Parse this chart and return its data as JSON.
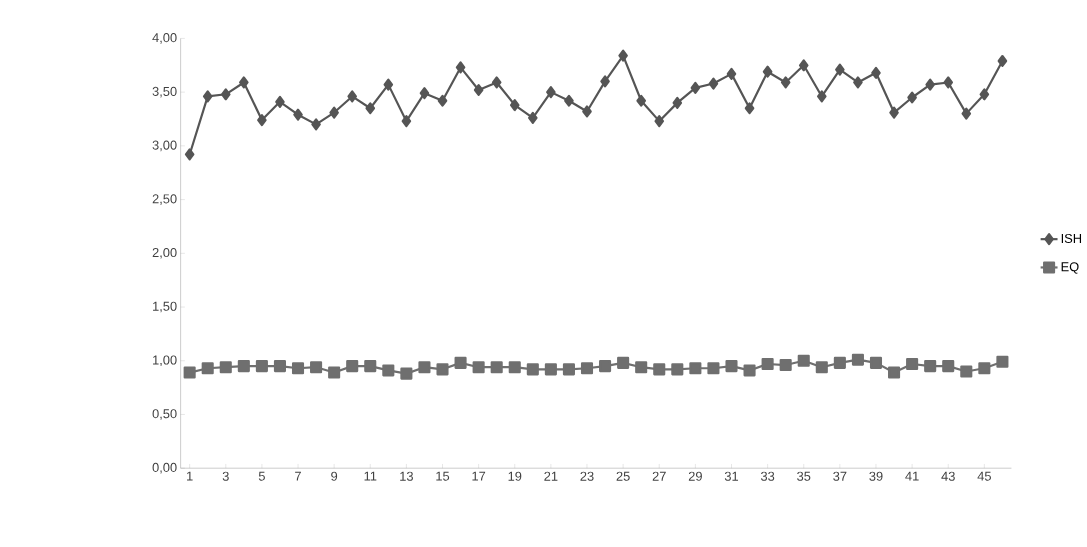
{
  "chart_data": {
    "type": "line",
    "categories": [
      "1",
      null,
      "3",
      null,
      "5",
      null,
      "7",
      null,
      "9",
      null,
      "11",
      null,
      "13",
      null,
      "15",
      null,
      "17",
      null,
      "19",
      null,
      "21",
      null,
      "23",
      null,
      "25",
      null,
      "27",
      null,
      "29",
      null,
      "31",
      null,
      "33",
      null,
      "35",
      null,
      "37",
      null,
      "39",
      null,
      "41",
      null,
      "43",
      null,
      "45",
      null
    ],
    "series": [
      {
        "name": "ISH",
        "color": "#555555",
        "marker": "diamond",
        "values": [
          2.92,
          3.46,
          3.48,
          3.59,
          3.24,
          3.41,
          3.29,
          3.2,
          3.31,
          3.46,
          3.35,
          3.57,
          3.23,
          3.49,
          3.42,
          3.73,
          3.52,
          3.59,
          3.38,
          3.26,
          3.5,
          3.42,
          3.32,
          3.6,
          3.84,
          3.42,
          3.23,
          3.4,
          3.54,
          3.58,
          3.67,
          3.35,
          3.69,
          3.59,
          3.75,
          3.46,
          3.71,
          3.59,
          3.68,
          3.31,
          3.45,
          3.57,
          3.59,
          3.3,
          3.48,
          3.79
        ]
      },
      {
        "name": "EQ",
        "color": "#6f6f6f",
        "marker": "square",
        "values": [
          0.89,
          0.93,
          0.94,
          0.95,
          0.95,
          0.95,
          0.93,
          0.94,
          0.89,
          0.95,
          0.95,
          0.91,
          0.88,
          0.94,
          0.92,
          0.98,
          0.94,
          0.94,
          0.94,
          0.92,
          0.92,
          0.92,
          0.93,
          0.95,
          0.98,
          0.94,
          0.92,
          0.92,
          0.93,
          0.93,
          0.95,
          0.91,
          0.97,
          0.96,
          1.0,
          0.94,
          0.98,
          1.01,
          0.98,
          0.89,
          0.97,
          0.95,
          0.95,
          0.9,
          0.93,
          0.99
        ]
      }
    ],
    "ylim": [
      0,
      4
    ],
    "yticks": [
      {
        "value": 0,
        "label": "0,00"
      },
      {
        "value": 0.5,
        "label": "0,50"
      },
      {
        "value": 1,
        "label": "1,00"
      },
      {
        "value": 1.5,
        "label": "1,50"
      },
      {
        "value": 2,
        "label": "2,00"
      },
      {
        "value": 2.5,
        "label": "2,50"
      },
      {
        "value": 3,
        "label": "3,00"
      },
      {
        "value": 3.5,
        "label": "3,50"
      },
      {
        "value": 4,
        "label": "4,00"
      }
    ],
    "grid": false,
    "legend": "right",
    "line_style": "solid"
  }
}
